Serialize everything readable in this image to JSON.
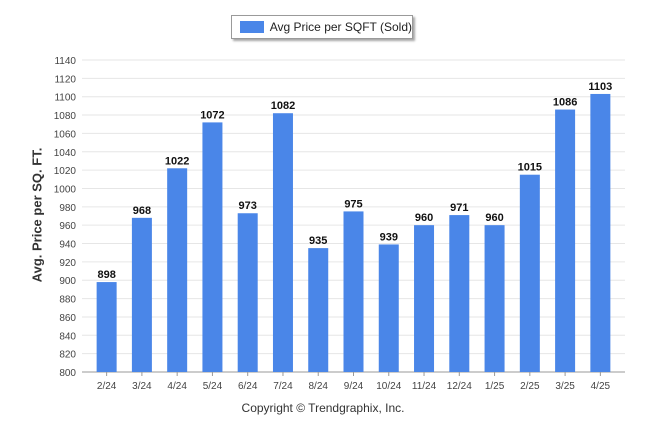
{
  "chart_data": {
    "type": "bar",
    "categories": [
      "2/24",
      "3/24",
      "4/24",
      "5/24",
      "6/24",
      "7/24",
      "8/24",
      "9/24",
      "10/24",
      "11/24",
      "12/24",
      "1/25",
      "2/25",
      "3/25",
      "4/25"
    ],
    "series": [
      {
        "name": "Avg Price per SQFT (Sold)",
        "values": [
          898,
          968,
          1022,
          1072,
          973,
          1082,
          935,
          975,
          939,
          960,
          971,
          960,
          1015,
          1086,
          1103
        ]
      }
    ],
    "ylabel": "Avg. Price per SQ. FT.",
    "xlabel": "",
    "ylim": [
      800,
      1140
    ],
    "yticks": [
      800,
      820,
      840,
      860,
      880,
      900,
      920,
      940,
      960,
      980,
      1000,
      1020,
      1040,
      1060,
      1080,
      1100,
      1120,
      1140
    ],
    "grid": true,
    "legend_position": "top-center",
    "bar_color": "#4a86e8"
  },
  "footer": {
    "copyright": "Copyright © Trendgraphix, Inc."
  }
}
